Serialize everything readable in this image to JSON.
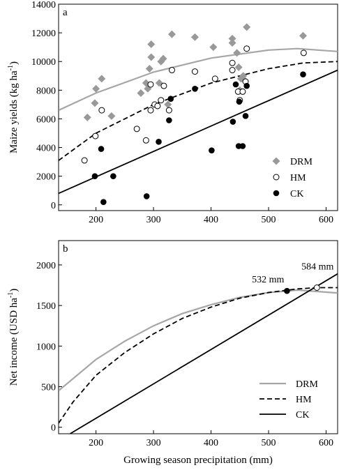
{
  "chart_data": [
    {
      "type": "scatter",
      "panel_label": "a",
      "ylabel": "Maize yields (kg ha",
      "ylabel_sup": "-1",
      "ylabel_close": ")",
      "xlim": [
        135,
        620
      ],
      "ylim": [
        -400,
        14000
      ],
      "xticks": [
        200,
        300,
        400,
        500,
        600
      ],
      "yticks": [
        0,
        2000,
        4000,
        6000,
        8000,
        10000,
        12000,
        14000
      ],
      "legend_position": "bottom-right",
      "series": [
        {
          "name": "DRM",
          "marker": "diamond",
          "color": "#999999",
          "points": [
            [
              185,
              6100
            ],
            [
              198,
              7100
            ],
            [
              200,
              8100
            ],
            [
              210,
              8800
            ],
            [
              227,
              6200
            ],
            [
              278,
              7800
            ],
            [
              287,
              8500
            ],
            [
              290,
              8100
            ],
            [
              293,
              9500
            ],
            [
              296,
              11200
            ],
            [
              296,
              10300
            ],
            [
              310,
              8500
            ],
            [
              313,
              10000
            ],
            [
              317,
              10200
            ],
            [
              325,
              7000
            ],
            [
              332,
              11900
            ],
            [
              372,
              11700
            ],
            [
              404,
              11000
            ],
            [
              437,
              11600
            ],
            [
              437,
              11300
            ],
            [
              450,
              8000
            ],
            [
              452,
              8800
            ],
            [
              456,
              9000
            ],
            [
              458,
              8700
            ],
            [
              462,
              12400
            ],
            [
              560,
              11800
            ],
            [
              445,
              10600
            ],
            [
              448,
              9600
            ]
          ],
          "fit": [
            [
              135,
              6600
            ],
            [
              200,
              7800
            ],
            [
              300,
              9260
            ],
            [
              400,
              10240
            ],
            [
              500,
              10800
            ],
            [
              550,
              10900
            ],
            [
              620,
              10700
            ]
          ]
        },
        {
          "name": "HM",
          "marker": "open-circle",
          "color": "#000000",
          "points": [
            [
              180,
              3100
            ],
            [
              199,
              4800
            ],
            [
              210,
              6600
            ],
            [
              271,
              5300
            ],
            [
              287,
              4500
            ],
            [
              295,
              6600
            ],
            [
              295,
              8400
            ],
            [
              302,
              7000
            ],
            [
              307,
              6900
            ],
            [
              313,
              7300
            ],
            [
              318,
              8300
            ],
            [
              327,
              6600
            ],
            [
              332,
              9400
            ],
            [
              372,
              9300
            ],
            [
              407,
              8800
            ],
            [
              437,
              9900
            ],
            [
              437,
              9400
            ],
            [
              447,
              7900
            ],
            [
              450,
              7300
            ],
            [
              455,
              7900
            ],
            [
              460,
              8600
            ],
            [
              462,
              10900
            ],
            [
              561,
              10600
            ]
          ],
          "fit": [
            [
              135,
              3100
            ],
            [
              200,
              5000
            ],
            [
              300,
              7000
            ],
            [
              400,
              8500
            ],
            [
              500,
              9500
            ],
            [
              560,
              9900
            ],
            [
              620,
              10000
            ]
          ]
        },
        {
          "name": "CK",
          "marker": "filled-circle",
          "color": "#000000",
          "points": [
            [
              198,
              2000
            ],
            [
              209,
              3900
            ],
            [
              213,
              200
            ],
            [
              230,
              2000
            ],
            [
              288,
              600
            ],
            [
              309,
              4400
            ],
            [
              327,
              5900
            ],
            [
              330,
              7400
            ],
            [
              372,
              8100
            ],
            [
              401,
              3800
            ],
            [
              438,
              5800
            ],
            [
              443,
              8400
            ],
            [
              448,
              4100
            ],
            [
              449,
              7200
            ],
            [
              455,
              4100
            ],
            [
              460,
              6200
            ],
            [
              462,
              8300
            ],
            [
              560,
              9100
            ]
          ],
          "fit": [
            [
              135,
              800
            ],
            [
              620,
              9400
            ]
          ]
        }
      ]
    },
    {
      "type": "line",
      "panel_label": "b",
      "xlabel": "Growing season precipitation (mm)",
      "ylabel": "Net income (USD ha",
      "ylabel_sup": "-1",
      "ylabel_close": ")",
      "xlim": [
        135,
        620
      ],
      "ylim": [
        -80,
        2300
      ],
      "xticks": [
        200,
        300,
        400,
        500,
        600
      ],
      "yticks": [
        0,
        500,
        1000,
        1500,
        2000
      ],
      "legend_position": "bottom-right",
      "series": [
        {
          "name": "DRM",
          "style": "solid",
          "color": "#a6a6a6",
          "points": [
            [
              135,
              450
            ],
            [
              200,
              835
            ],
            [
              250,
              1060
            ],
            [
              300,
              1250
            ],
            [
              350,
              1400
            ],
            [
              400,
              1510
            ],
            [
              450,
              1600
            ],
            [
              500,
              1660
            ],
            [
              550,
              1690
            ],
            [
              620,
              1655
            ]
          ]
        },
        {
          "name": "HM",
          "style": "dashed",
          "color": "#000000",
          "points": [
            [
              135,
              50
            ],
            [
              160,
              310
            ],
            [
              200,
              640
            ],
            [
              250,
              920
            ],
            [
              300,
              1150
            ],
            [
              350,
              1340
            ],
            [
              400,
              1480
            ],
            [
              450,
              1590
            ],
            [
              500,
              1660
            ],
            [
              550,
              1705
            ],
            [
              584,
              1720
            ],
            [
              620,
              1720
            ]
          ]
        },
        {
          "name": "CK",
          "style": "solid",
          "color": "#000000",
          "points": [
            [
              155,
              -80
            ],
            [
              620,
              1890
            ]
          ]
        }
      ],
      "annotations": [
        {
          "label": "532 mm",
          "x": 532,
          "y": 1680
        },
        {
          "label": "584 mm",
          "x": 584,
          "y": 1720
        }
      ]
    }
  ]
}
